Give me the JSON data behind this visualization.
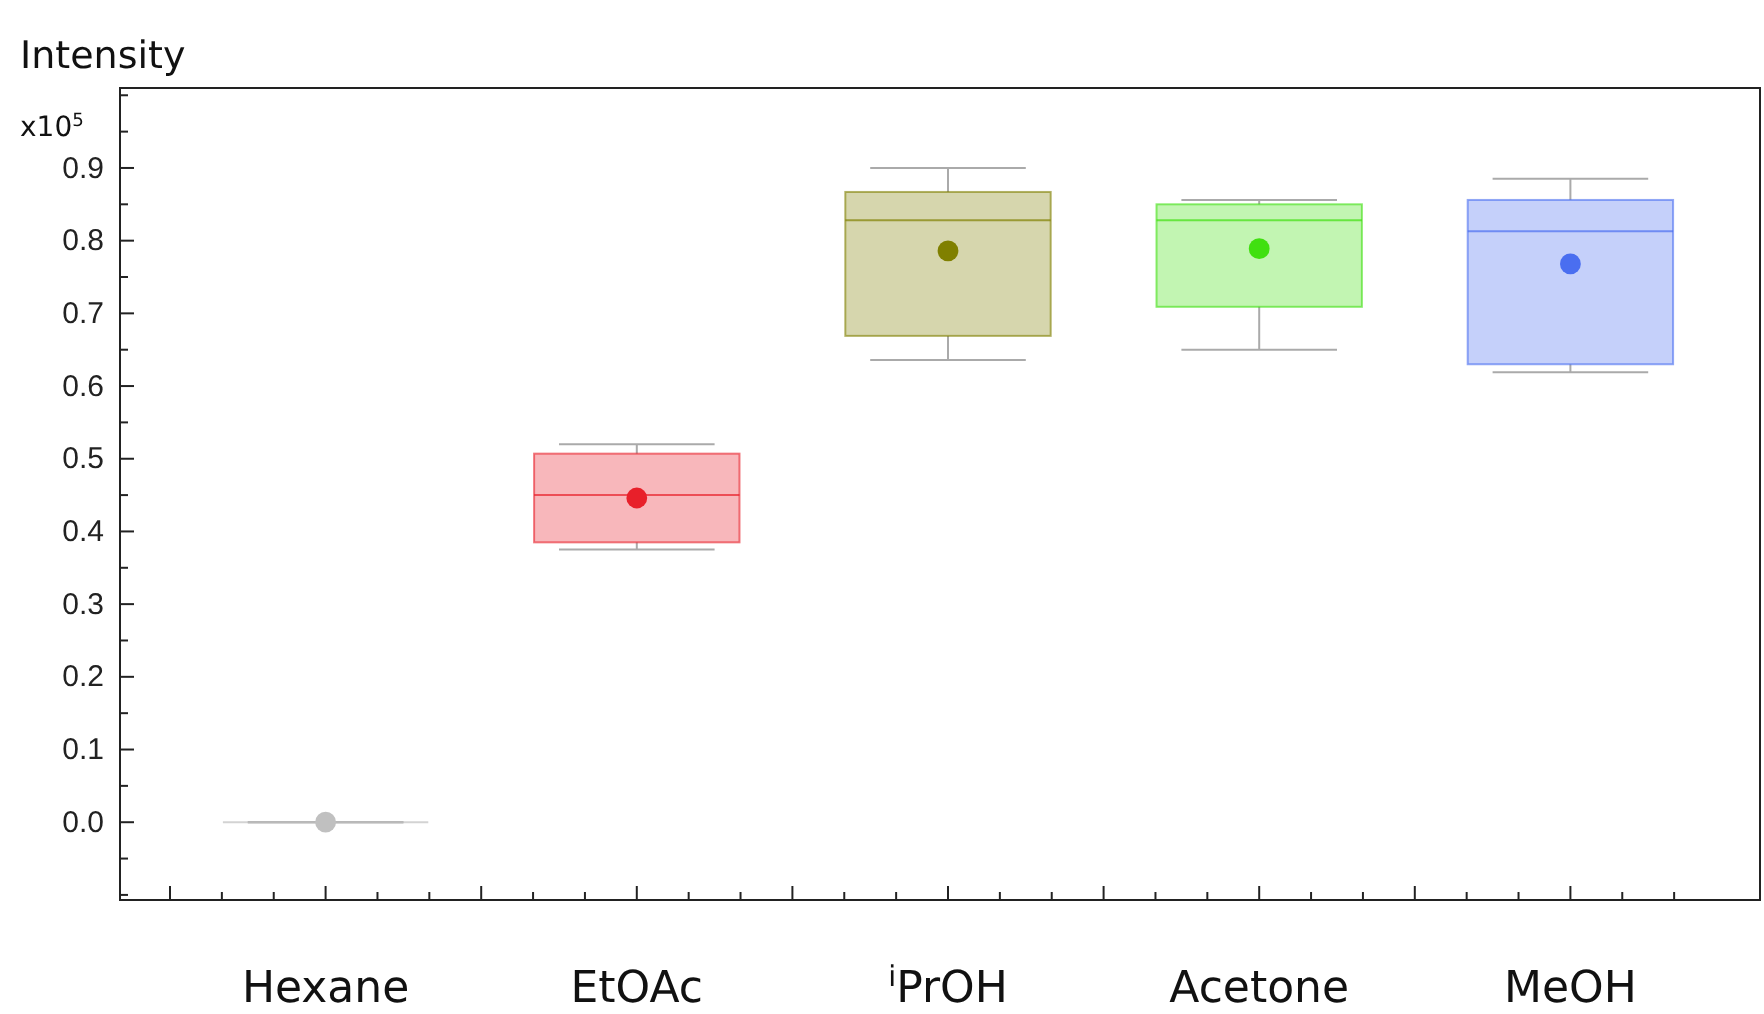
{
  "chart_data": {
    "type": "box",
    "ylabel": "Intensity",
    "annotations": [
      "x10$^{5}$"
    ],
    "categories": [
      "Hexane",
      "EtOAc",
      "$^{i}$PrOH",
      "Acetone",
      "MeOH"
    ],
    "colors": [
      "#c0c0c0",
      "#e8202a",
      "#808000",
      "#40e010",
      "#4a6ef0"
    ],
    "boxes": [
      {
        "low": 0,
        "q1": 0,
        "median": 0,
        "q3": 0,
        "high": 0,
        "mean": 0
      },
      {
        "low": 0.375,
        "q1": 0.385,
        "median": 0.45,
        "q3": 0.507,
        "high": 0.52,
        "mean": 0.446
      },
      {
        "low": 0.636,
        "q1": 0.669,
        "median": 0.828,
        "q3": 0.867,
        "high": 0.9,
        "mean": 0.786
      },
      {
        "low": 0.65,
        "q1": 0.709,
        "median": 0.828,
        "q3": 0.85,
        "high": 0.856,
        "mean": 0.789
      },
      {
        "low": 0.619,
        "q1": 0.63,
        "median": 0.813,
        "q3": 0.856,
        "high": 0.885,
        "mean": 0.768
      }
    ],
    "ylim": [
      -0.107,
      1.01
    ],
    "yticks": [
      {
        "value": -0.1,
        "label": null
      },
      {
        "value": -0.05,
        "label": null
      },
      {
        "value": 0,
        "label": "0.0"
      },
      {
        "value": 0.05,
        "label": null
      },
      0.1,
      {
        "value": 0.15,
        "label": null
      },
      0.2,
      {
        "value": 0.25,
        "label": null
      },
      0.3,
      {
        "value": 0.35,
        "label": null
      },
      0.4,
      {
        "value": 0.45,
        "label": null
      },
      0.5,
      {
        "value": 0.55,
        "label": null
      },
      0.6,
      {
        "value": 0.65,
        "label": null
      },
      0.7,
      {
        "value": 0.75,
        "label": null
      },
      0.8,
      {
        "value": 0.85,
        "label": null
      },
      0.9,
      {
        "value": 0.95,
        "label": null
      },
      {
        "value": 1.0,
        "label": null
      }
    ],
    "marker": "circle",
    "grid": false
  }
}
